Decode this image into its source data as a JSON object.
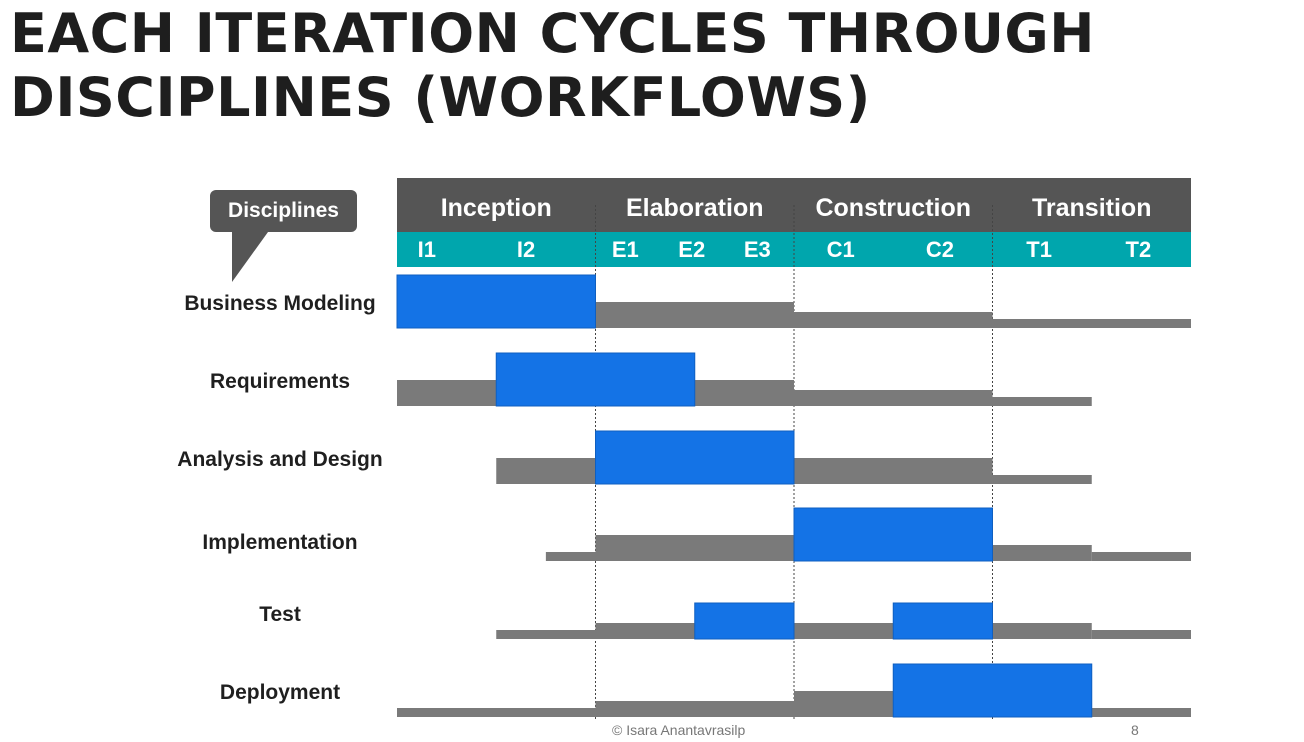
{
  "title": {
    "line1": "EACH ITERATION CYCLES THROUGH",
    "line2": "DISCIPLINES (WORKFLOWS)"
  },
  "callout": "Disciplines",
  "phases": [
    "Inception",
    "Elaboration",
    "Construction",
    "Transition"
  ],
  "iterations": [
    "I1",
    "I2",
    "E1",
    "E2",
    "E3",
    "C1",
    "C2",
    "T1",
    "T2"
  ],
  "disciplines": [
    {
      "name": "Business Modeling",
      "effort": [
        [
          0,
          2,
          "high"
        ],
        [
          2,
          4,
          "med"
        ],
        [
          4,
          6,
          "low"
        ],
        [
          6,
          8,
          "xlow"
        ]
      ]
    },
    {
      "name": "Requirements",
      "effort": [
        [
          0,
          1,
          "med"
        ],
        [
          1,
          3,
          "high"
        ],
        [
          3,
          4,
          "med"
        ],
        [
          4,
          6,
          "low"
        ],
        [
          6,
          7,
          "xlow"
        ]
      ]
    },
    {
      "name": "Analysis and Design",
      "effort": [
        [
          1,
          2,
          "med"
        ],
        [
          2,
          4,
          "high"
        ],
        [
          4,
          6,
          "med"
        ],
        [
          6,
          7,
          "xlow"
        ]
      ]
    },
    {
      "name": "Implementation",
      "effort": [
        [
          1.5,
          2,
          "xlow"
        ],
        [
          2,
          4,
          "med"
        ],
        [
          4,
          6,
          "high"
        ],
        [
          6,
          7,
          "low"
        ],
        [
          7,
          8,
          "xlow"
        ]
      ]
    },
    {
      "name": "Test",
      "effort": [
        [
          1,
          2,
          "xlow"
        ],
        [
          2,
          3,
          "low"
        ],
        [
          3,
          4,
          "medhigh"
        ],
        [
          4,
          5,
          "low"
        ],
        [
          5,
          6,
          "medhigh"
        ],
        [
          6,
          7,
          "low"
        ],
        [
          7,
          8,
          "xlow"
        ]
      ]
    },
    {
      "name": "Deployment",
      "effort": [
        [
          0,
          2,
          "xlow"
        ],
        [
          2,
          4,
          "low"
        ],
        [
          4,
          5,
          "med"
        ],
        [
          5,
          7,
          "high"
        ],
        [
          7,
          8,
          "xlow"
        ]
      ]
    }
  ],
  "footer": "© Isara Anantavrasilp",
  "page_number": "8",
  "colors": {
    "header": "#555555",
    "iteration_bar": "#00a6ad",
    "effort": "#7a7a7a",
    "peak": "#1473e6"
  }
}
